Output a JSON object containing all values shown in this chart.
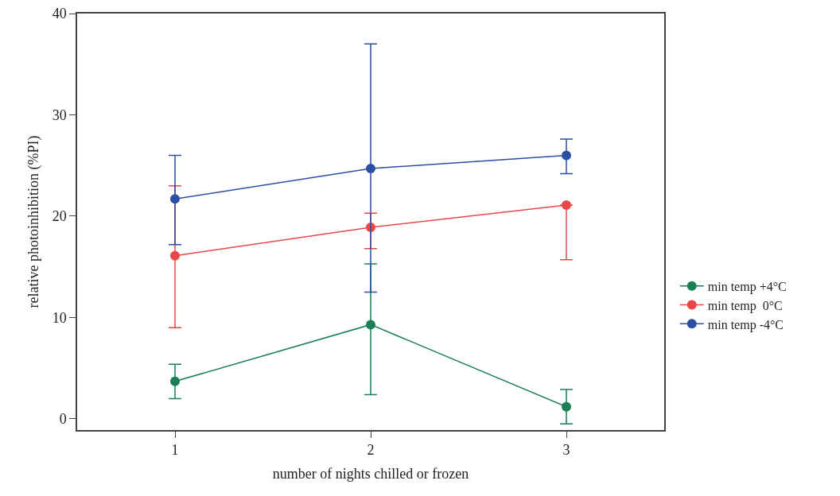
{
  "chart_data": {
    "type": "line",
    "xlabel": "number of nights chilled or frozen",
    "ylabel": "relative photoinhibition (%PI)",
    "x": [
      1,
      2,
      3
    ],
    "xlim": [
      0.5,
      3.5
    ],
    "xticks": [
      1,
      2,
      3
    ],
    "ylim": [
      -1.1,
      40
    ],
    "yticks": [
      0,
      10,
      20,
      30,
      40
    ],
    "grid": false,
    "legend": "right",
    "marker": "circle",
    "line_style": "solid",
    "series": [
      {
        "name": "min temp +4°C",
        "color": "#1a7f55",
        "values": [
          3.7,
          9.3,
          1.2
        ],
        "errors": [
          [
            2.0,
            5.4
          ],
          [
            2.4,
            15.3
          ],
          [
            -0.5,
            2.9
          ]
        ]
      },
      {
        "name": "min temp  0°C",
        "color": "#e8474a",
        "values": [
          16.1,
          18.9,
          21.1
        ],
        "errors": [
          [
            9.0,
            23.0
          ],
          [
            16.8,
            20.3
          ],
          [
            15.7,
            21.1
          ]
        ]
      },
      {
        "name": "min temp -4°C",
        "color": "#2b4fa3",
        "values": [
          21.7,
          24.7,
          26.0
        ],
        "errors": [
          [
            17.2,
            26.0
          ],
          [
            12.5,
            37.0
          ],
          [
            24.2,
            27.6
          ]
        ]
      }
    ]
  }
}
